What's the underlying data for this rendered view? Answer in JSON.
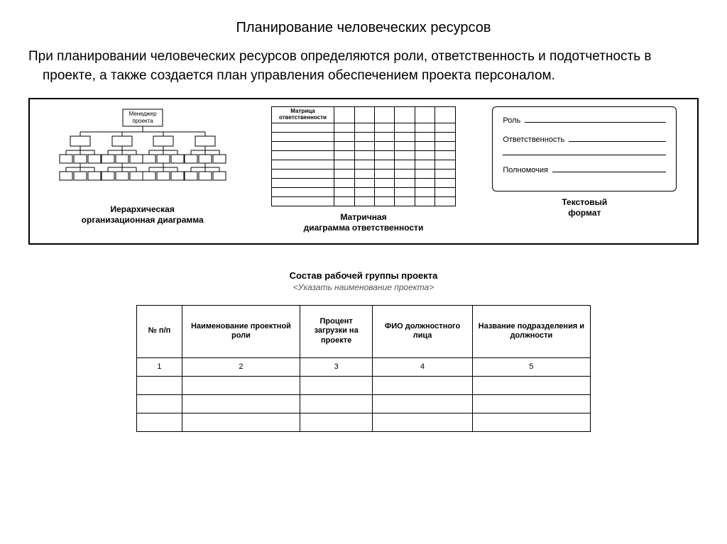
{
  "title": "Планирование человеческих ресурсов",
  "intro": "При планировании человеческих ресурсов определяются роли, ответственность и подотчетность в проекте, а также создается план управления обеспечением проекта персоналом.",
  "formats": {
    "hierarchy": {
      "root_label_line1": "Менеджер",
      "root_label_line2": "проекта",
      "caption": "Иерархическая\nорганизационная диаграмма"
    },
    "matrix": {
      "header_line1": "Матрица",
      "header_line2": "ответственности",
      "cols": 7,
      "rows": 9,
      "caption": "Матричная\nдиаграмма ответственности"
    },
    "text": {
      "fields": [
        "Роль",
        "Ответственность",
        "Полномочия"
      ],
      "caption": "Текстовый\nформат"
    }
  },
  "group": {
    "title": "Состав рабочей группы проекта",
    "subtitle": "<Указать наименование проекта>",
    "columns": [
      {
        "label": "№ п/п",
        "width": "10%"
      },
      {
        "label": "Наименование проектной роли",
        "width": "26%"
      },
      {
        "label": "Процент загрузки на проекте",
        "width": "16%"
      },
      {
        "label": "ФИО должностного лица",
        "width": "22%"
      },
      {
        "label": "Название подразделения и должности",
        "width": "26%"
      }
    ],
    "number_row": [
      "1",
      "2",
      "3",
      "4",
      "5"
    ],
    "empty_rows": 3
  },
  "colors": {
    "background": "#ffffff",
    "text": "#000000",
    "border": "#000000",
    "subtle": "#555555"
  }
}
